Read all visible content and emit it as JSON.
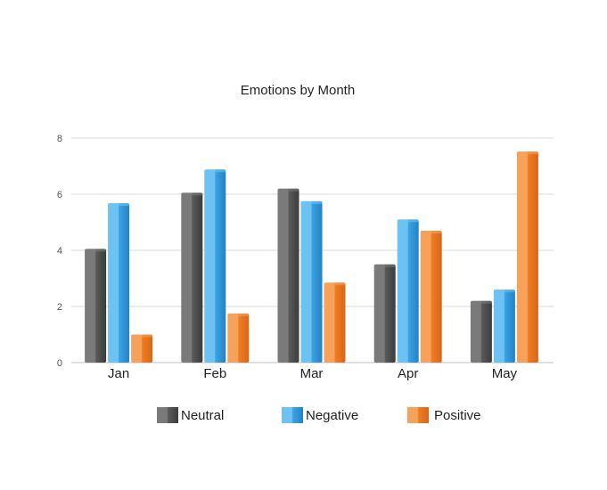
{
  "chart_data": {
    "type": "bar",
    "title": "Emotions by Month",
    "xlabel": "",
    "ylabel": "",
    "categories": [
      "Jan",
      "Feb",
      "Mar",
      "Apr",
      "May"
    ],
    "ylim": [
      0,
      8
    ],
    "yticks": [
      "0",
      "2",
      "4",
      "6",
      "8"
    ],
    "grid": true,
    "legend_position": "bottom",
    "series": [
      {
        "name": "Neutral",
        "values": [
          4.05,
          6.05,
          6.2,
          3.5,
          2.2
        ],
        "color": "#5a5a5a",
        "highlight": "#7a7a7a",
        "shade": "#3c3c3c"
      },
      {
        "name": "Negative",
        "values": [
          5.68,
          6.88,
          5.75,
          5.1,
          2.6
        ],
        "color": "#3aa3e3",
        "highlight": "#6cc2f2",
        "shade": "#2582c4"
      },
      {
        "name": "Positive",
        "values": [
          1.0,
          1.75,
          2.85,
          4.7,
          7.52
        ],
        "color": "#ef7d22",
        "highlight": "#f6a25a",
        "shade": "#d9661a"
      }
    ]
  }
}
